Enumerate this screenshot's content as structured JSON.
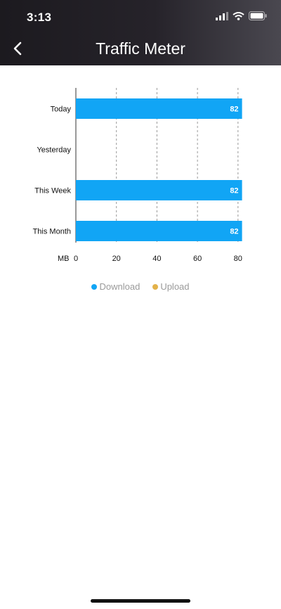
{
  "status_bar": {
    "time": "3:13"
  },
  "header": {
    "title": "Traffic Meter"
  },
  "colors": {
    "download": "#11a5f5",
    "upload": "#e3b24a",
    "grid": "#999999"
  },
  "legend": [
    {
      "label": "Download",
      "color": "#11a5f5"
    },
    {
      "label": "Upload",
      "color": "#e3b24a"
    }
  ],
  "chart_data": {
    "type": "bar",
    "orientation": "horizontal",
    "categories": [
      "Today",
      "Yesterday",
      "This Week",
      "This Month"
    ],
    "series": [
      {
        "name": "Download",
        "values": [
          82,
          0,
          82,
          82
        ]
      },
      {
        "name": "Upload",
        "values": [
          0,
          0,
          0,
          0
        ]
      }
    ],
    "value_labels": [
      "82",
      "",
      "82",
      "82"
    ],
    "xlabel": "MB",
    "xticks": [
      0,
      20,
      40,
      60,
      80
    ],
    "xlim": [
      0,
      82
    ],
    "grid": "vertical dashed"
  }
}
